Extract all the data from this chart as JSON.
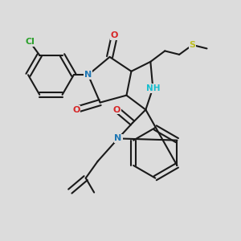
{
  "bg_color": "#dcdcdc",
  "bond_color": "#1a1a1a",
  "bond_width": 1.5,
  "figsize": [
    3.0,
    3.0
  ],
  "dpi": 100,
  "atoms": {
    "Cl": {
      "color": "#2ca02c"
    },
    "O": {
      "color": "#d62728"
    },
    "N": {
      "color": "#1f77b4"
    },
    "NH": {
      "color": "#17becf"
    },
    "S": {
      "color": "#bcbd22"
    }
  }
}
